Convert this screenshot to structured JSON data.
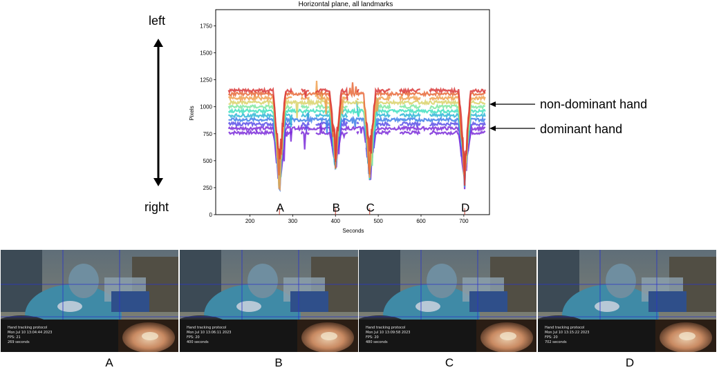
{
  "chart_data": {
    "type": "scatter",
    "title": "Horizontal plane, all landmarks",
    "xlabel": "Seconds",
    "ylabel": "Pixels",
    "xlim": [
      120,
      760
    ],
    "ylim": [
      0,
      1900
    ],
    "xticks": [
      200,
      300,
      400,
      500,
      600,
      700
    ],
    "yticks": [
      0,
      250,
      500,
      750,
      1000,
      1250,
      1500,
      1750
    ],
    "x_range_data": [
      150,
      750
    ],
    "band_baselines": [
      760,
      800,
      840,
      880,
      920,
      960,
      1000,
      1040,
      1080,
      1120,
      1150
    ],
    "event_markers": [
      {
        "label": "A",
        "x": 269,
        "dip_to": 180
      },
      {
        "label": "B",
        "x": 400,
        "dip_to": 400
      },
      {
        "label": "C",
        "x": 480,
        "dip_to": 280
      },
      {
        "label": "D",
        "x": 702,
        "dip_to": 230
      }
    ],
    "annotations": [
      {
        "text": "non-dominant hand",
        "y": 1040
      },
      {
        "text": "dominant hand",
        "y": 800
      }
    ],
    "grid": false,
    "colors": [
      "#7b2bd9",
      "#5a4ee8",
      "#3f7fe8",
      "#2fb6d6",
      "#3fe0c0",
      "#7fe8a0",
      "#d9d26a",
      "#f0a050",
      "#e86a3a",
      "#d93a3a"
    ]
  },
  "axis_labels": {
    "left": "left",
    "right": "right"
  },
  "hand_labels": {
    "non_dominant": "non-dominant hand",
    "dominant": "dominant hand"
  },
  "frames": [
    {
      "label": "A",
      "line1": "Hand tracking protocol",
      "line2": "Mon Jul 10 13:04:44 2023",
      "line3": "FPS: 21",
      "line4": "269 seconds"
    },
    {
      "label": "B",
      "line1": "Hand tracking protocol",
      "line2": "Mon Jul 10 13:06:11 2023",
      "line3": "FPS: 20",
      "line4": "400 seconds"
    },
    {
      "label": "C",
      "line1": "Hand tracking protocol",
      "line2": "Mon Jul 10 13:09:58 2023",
      "line3": "FPS: 20",
      "line4": "480 seconds"
    },
    {
      "label": "D",
      "line1": "Hand tracking protocol",
      "line2": "Mon Jul 10 13:15:22 2023",
      "line3": "FPS: 20",
      "line4": "702 seconds"
    }
  ]
}
